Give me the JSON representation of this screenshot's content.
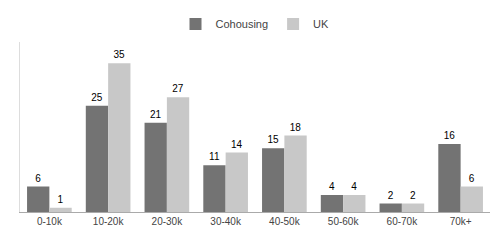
{
  "chart_data": {
    "type": "bar",
    "categories": [
      "0-10k",
      "10-20k",
      "20-30k",
      "30-40k",
      "40-50k",
      "50-60k",
      "60-70k",
      "70k+"
    ],
    "series": [
      {
        "name": "Cohousing",
        "color": "#737373",
        "values": [
          6,
          25,
          21,
          11,
          15,
          4,
          2,
          16
        ]
      },
      {
        "name": "UK",
        "color": "#c8c8c8",
        "values": [
          1,
          35,
          27,
          14,
          18,
          4,
          2,
          6
        ]
      }
    ],
    "ylim": [
      0,
      40
    ],
    "data_labels": true,
    "tick_labels": "x",
    "grid": false,
    "legend": "top"
  }
}
